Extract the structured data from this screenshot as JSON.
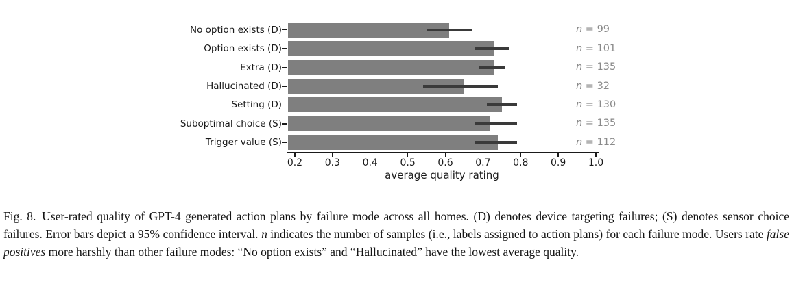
{
  "chart_data": {
    "type": "bar",
    "orientation": "horizontal",
    "title": "",
    "xlabel": "average quality rating",
    "ylabel": "",
    "categories": [
      "No option exists (D)",
      "Option exists (D)",
      "Extra (D)",
      "Hallucinated (D)",
      "Setting (D)",
      "Suboptimal choice (S)",
      "Trigger value (S)"
    ],
    "values": [
      0.61,
      0.73,
      0.73,
      0.65,
      0.75,
      0.72,
      0.74
    ],
    "ci_low": [
      0.55,
      0.68,
      0.69,
      0.54,
      0.71,
      0.68,
      0.68
    ],
    "ci_high": [
      0.67,
      0.77,
      0.76,
      0.74,
      0.79,
      0.79,
      0.79
    ],
    "error_bar_note": "95% confidence interval",
    "sample_size_prefix": "n",
    "sample_size_equals": " = ",
    "sample_sizes": [
      99,
      101,
      135,
      32,
      130,
      135,
      112
    ],
    "xlim": [
      0.18,
      1.0
    ],
    "xticks": [
      0.2,
      0.3,
      0.4,
      0.5,
      0.6,
      0.7,
      0.8,
      0.9,
      1.0
    ],
    "xtick_labels": [
      "0.2",
      "0.3",
      "0.4",
      "0.5",
      "0.6",
      "0.7",
      "0.8",
      "0.9",
      "1.0"
    ],
    "grid": false,
    "legend": null,
    "colors": {
      "bar": "#7f7f7f",
      "error_bar": "#3a3a3a",
      "axis": "#1a1a1a",
      "n_label": "#8a8a8a",
      "background": "#ffffff"
    }
  },
  "caption": {
    "segments": [
      {
        "text": "Fig. 8. User-rated quality of GPT-4 generated action plans by failure mode across all homes. (D) denotes device targeting failures; (S) denotes sensor choice failures. Error bars depict a 95% confidence interval. ",
        "italic": false
      },
      {
        "text": "n",
        "italic": true
      },
      {
        "text": " indicates the number of samples (i.e., labels assigned to action plans) for each failure mode. Users rate ",
        "italic": false
      },
      {
        "text": "false positives",
        "italic": true
      },
      {
        "text": " more harshly than other failure modes: “No option exists” and “Hallucinated” have the lowest average quality.",
        "italic": false
      }
    ]
  }
}
